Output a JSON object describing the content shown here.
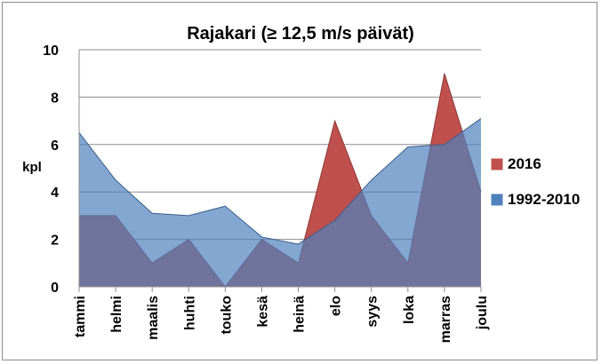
{
  "chart_data": {
    "type": "area",
    "title": "Rajakari (≥ 12,5 m/s päivät)",
    "ylabel": "kpl",
    "xlabel": "",
    "ylim": [
      0,
      10
    ],
    "yticks": [
      "0",
      "2",
      "4",
      "6",
      "8",
      "10"
    ],
    "categories": [
      "tammi",
      "helmi",
      "maalis",
      "huhti",
      "touko",
      "kesä",
      "heinä",
      "elo",
      "syys",
      "loka",
      "marras",
      "joulu"
    ],
    "series": [
      {
        "name": "2016",
        "color": "#c0504d",
        "values": [
          3,
          3,
          1,
          2,
          0,
          2,
          1,
          7,
          3,
          1,
          9,
          4
        ]
      },
      {
        "name": "1992-2010",
        "color": "#4f81bd",
        "values": [
          6.5,
          4.5,
          3.1,
          3.0,
          3.4,
          2.1,
          1.8,
          2.8,
          4.5,
          5.9,
          6.0,
          7.1
        ]
      }
    ],
    "legend_position": "right",
    "grid": true
  }
}
